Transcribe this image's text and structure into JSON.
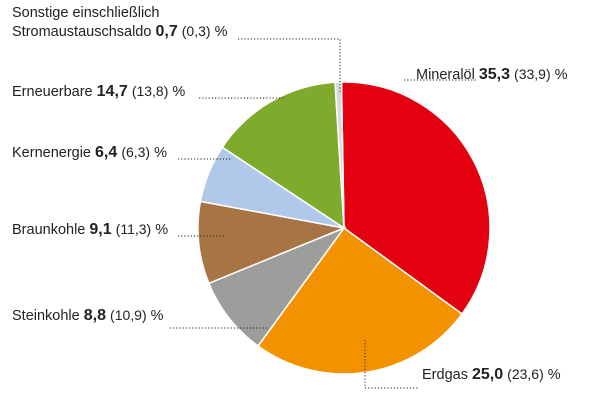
{
  "chart_data": {
    "type": "pie",
    "unit": "%",
    "slices": [
      {
        "label": "Mineralöl",
        "value": 35.3,
        "value_text": "35,3",
        "prev_text": "(33,9)",
        "color": "#e3000f"
      },
      {
        "label": "Erdgas",
        "value": 25.0,
        "value_text": "25,0",
        "prev_text": "(23,6)",
        "color": "#f39200"
      },
      {
        "label": "Steinkohle",
        "value": 8.8,
        "value_text": "8,8",
        "prev_text": "(10,9)",
        "color": "#9d9d9c"
      },
      {
        "label": "Braunkohle",
        "value": 9.1,
        "value_text": "9,1",
        "prev_text": "(11,3)",
        "color": "#a77443"
      },
      {
        "label": "Kernenergie",
        "value": 6.4,
        "value_text": "6,4",
        "prev_text": "(6,3)",
        "color": "#b0c8ea"
      },
      {
        "label": "Erneuerbare",
        "value": 14.7,
        "value_text": "14,7",
        "prev_text": "(13,8)",
        "color": "#7fab2d"
      },
      {
        "label": "Sonstige einschließlich Stromaustauschsaldo",
        "label_line1": "Sonstige einschließlich",
        "label_line2": "Stromaustauschsaldo",
        "value": 0.7,
        "value_text": "0,7",
        "prev_text": "(0,3)",
        "color": "#dadada"
      }
    ]
  }
}
